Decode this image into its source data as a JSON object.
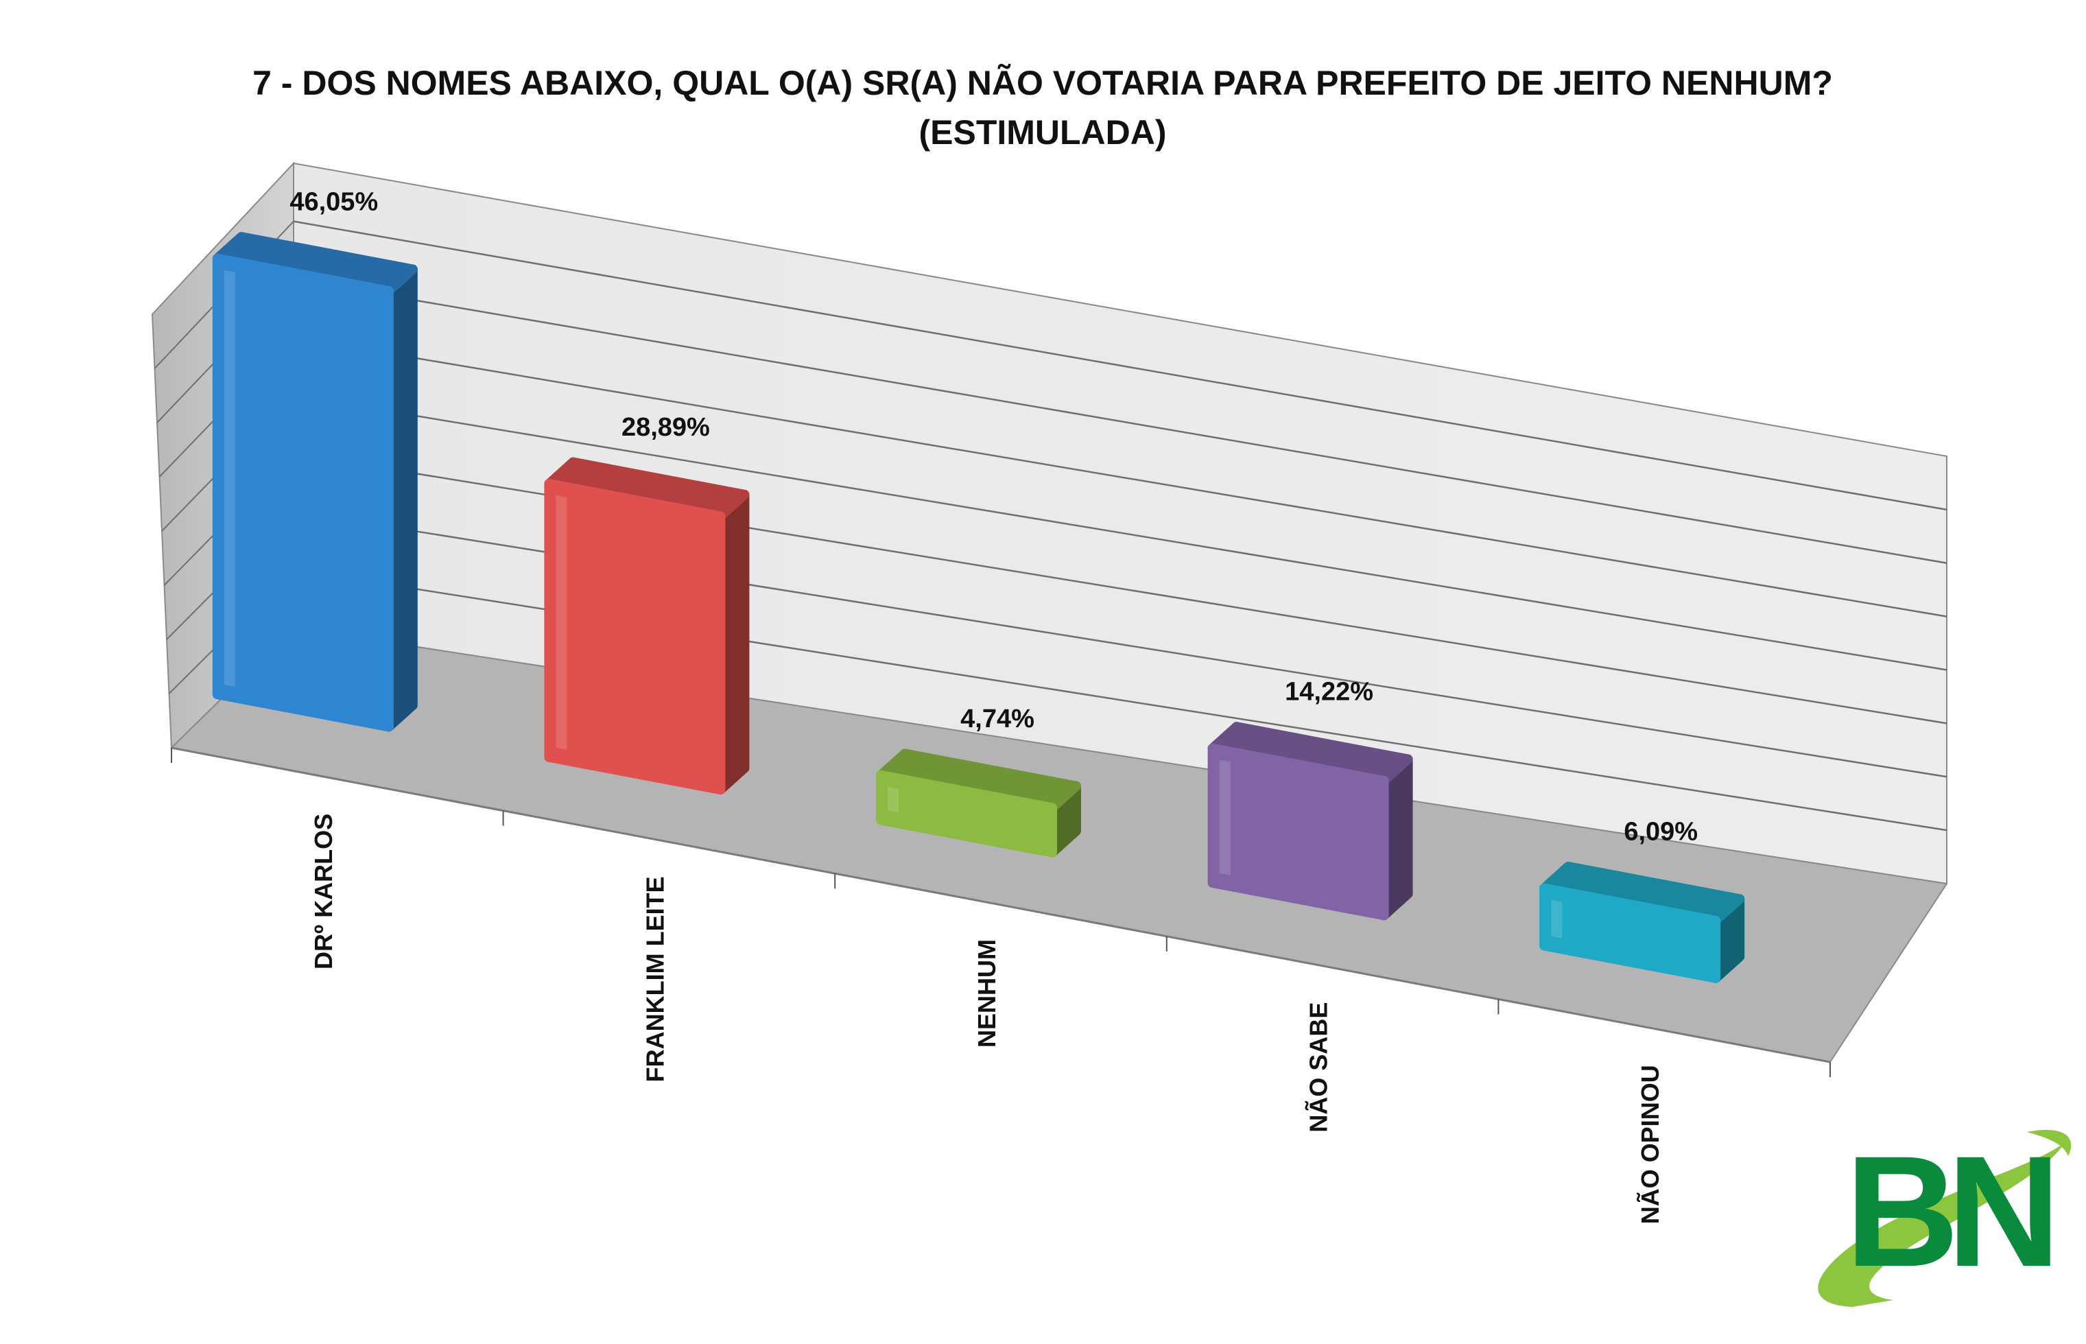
{
  "chart_data": {
    "type": "bar",
    "title": "7 -  DOS NOMES ABAIXO, QUAL O(A) SR(A) NÃO VOTARIA PARA PREFEITO DE JEITO NENHUM?",
    "subtitle": "(ESTIMULADA)",
    "categories": [
      "DRº KARLOS",
      "FRANKLIM LEITE",
      "NENHUM",
      "NÃO SABE",
      "NÃO OPINOU"
    ],
    "values": [
      46.05,
      28.89,
      4.74,
      14.22,
      6.09
    ],
    "value_labels": [
      "46,05%",
      "28,89%",
      "4,74%",
      "14,22%",
      "6,09%"
    ],
    "colors": [
      "#2f86d0",
      "#e0504e",
      "#8cba43",
      "#8264a6",
      "#1fa9c6"
    ],
    "ylim": [
      0,
      50
    ],
    "grid": true,
    "legend": "none",
    "xlabel": "",
    "ylabel": ""
  },
  "logo": {
    "text": "BN",
    "colors": {
      "letters": "#0a8a3c",
      "swoosh": "#8cc63f"
    }
  }
}
